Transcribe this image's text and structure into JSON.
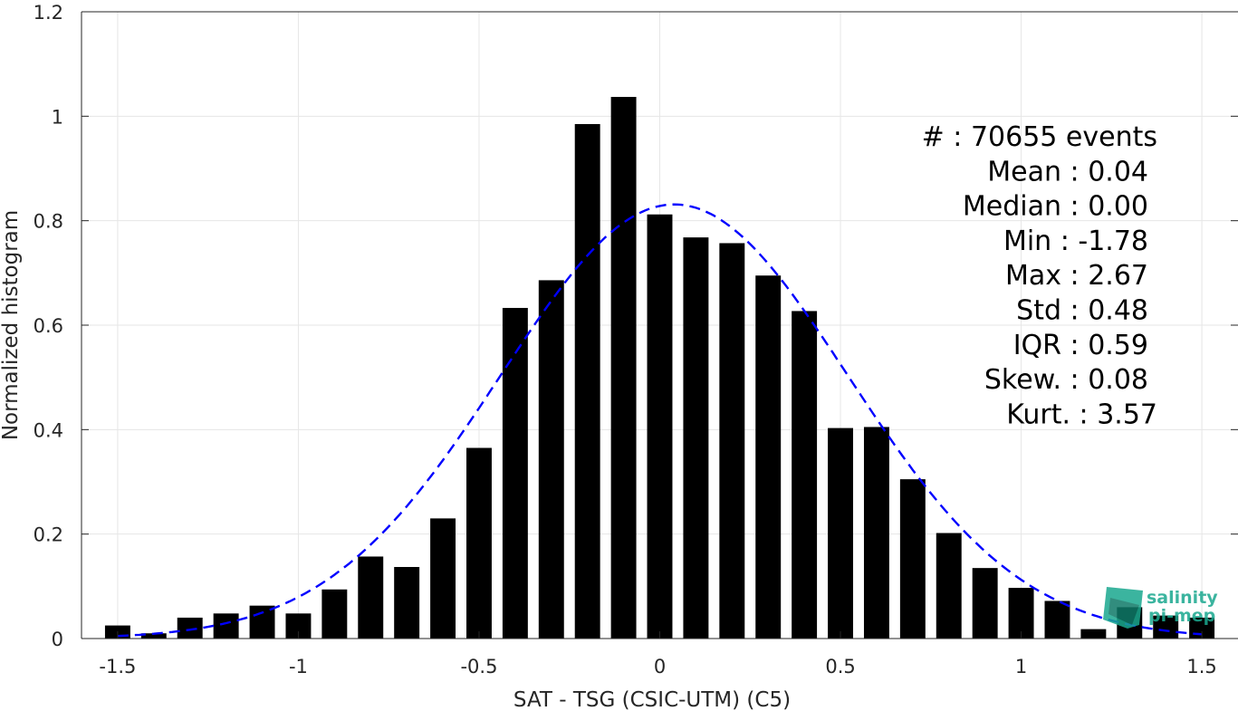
{
  "chart_data": {
    "type": "bar",
    "xlabel": "SAT - TSG (CSIC-UTM) (C5)",
    "ylabel": "Normalized histogram",
    "xlim": [
      -1.6,
      1.6
    ],
    "ylim": [
      0,
      1.2
    ],
    "xticks": [
      -1.5,
      -1,
      -0.5,
      0,
      0.5,
      1,
      1.5
    ],
    "xtick_labels": [
      "-1.5",
      "-1",
      "-0.5",
      "0",
      "0.5",
      "1",
      "1.5"
    ],
    "yticks": [
      0,
      0.2,
      0.4,
      0.6,
      0.8,
      1,
      1.2
    ],
    "ytick_labels": [
      "0",
      "0.2",
      "0.4",
      "0.6",
      "0.8",
      "1",
      "1.2"
    ],
    "grid": true,
    "bar_width": 0.07,
    "x": [
      -1.5,
      -1.4,
      -1.3,
      -1.2,
      -1.1,
      -1.0,
      -0.9,
      -0.8,
      -0.7,
      -0.6,
      -0.5,
      -0.4,
      -0.3,
      -0.2,
      -0.1,
      0.0,
      0.1,
      0.2,
      0.3,
      0.4,
      0.5,
      0.6,
      0.7,
      0.8,
      0.9,
      1.0,
      1.1,
      1.2,
      1.3,
      1.4,
      1.5
    ],
    "values": [
      0.025,
      0.01,
      0.04,
      0.048,
      0.063,
      0.048,
      0.094,
      0.157,
      0.137,
      0.23,
      0.365,
      0.633,
      0.686,
      0.985,
      1.037,
      0.812,
      0.768,
      0.757,
      0.695,
      0.627,
      0.403,
      0.405,
      0.305,
      0.202,
      0.135,
      0.097,
      0.072,
      0.018,
      0.06,
      0.044,
      0.04
    ],
    "bar_color": "#000000",
    "fit_curve": {
      "type": "normal",
      "style": "dashed",
      "color": "#0000ff",
      "mean": 0.04,
      "std": 0.48
    },
    "stats_lines": [
      "#  : 70655 events",
      "Mean : 0.04",
      "Median : 0.00",
      "Min : -1.78",
      "Max : 2.67",
      "Std : 0.48",
      "IQR : 0.59",
      "Skew. : 0.08",
      "Kurt. : 3.57"
    ],
    "logo": {
      "line1": "salinity",
      "line2": "pi-mep",
      "color": "#1aa88f"
    }
  }
}
